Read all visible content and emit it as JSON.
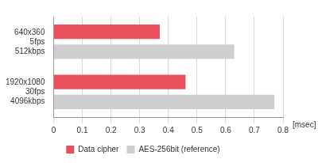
{
  "chart_data": {
    "type": "bar",
    "orientation": "horizontal",
    "categories": [
      [
        "640x360",
        "5fps",
        "512kbps"
      ],
      [
        "1920x1080",
        "30fps",
        "4096kbps"
      ]
    ],
    "series": [
      {
        "name": "Data cipher",
        "color": "#e9505c",
        "values": [
          0.37,
          0.46
        ]
      },
      {
        "name": "AES-256bit (reference)",
        "color": "#cfcfcf",
        "values": [
          0.63,
          0.77
        ]
      }
    ],
    "xlabel": "[msec]",
    "xlim": [
      0,
      0.8
    ],
    "xticks": [
      0,
      0.1,
      0.2,
      0.3,
      0.4,
      0.5,
      0.6,
      0.7,
      0.8
    ],
    "grid": true,
    "legend": "bottom"
  }
}
